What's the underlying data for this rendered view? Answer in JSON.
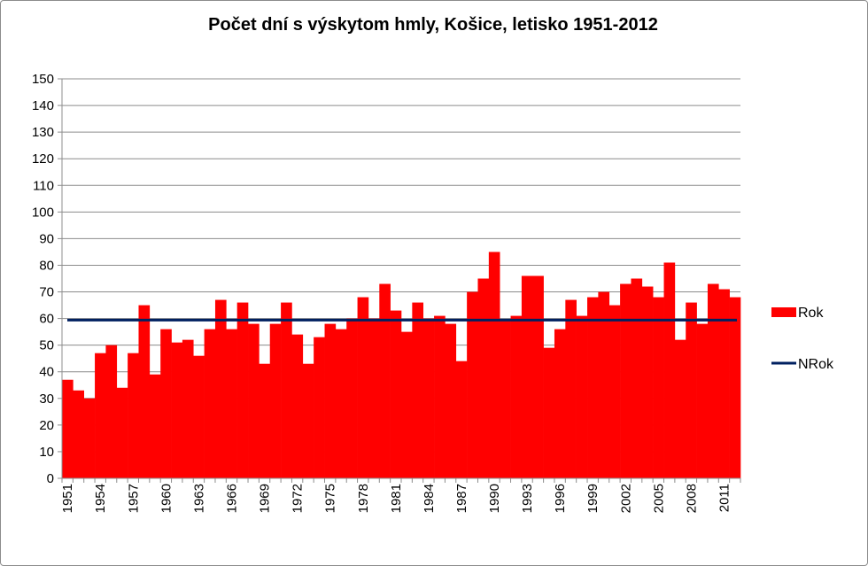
{
  "chart_data": {
    "type": "bar",
    "title": "Počet dní s výskytom hmly, Košice, letisko 1951-2012",
    "xlabel": "",
    "ylabel": "",
    "ylim": [
      0,
      150
    ],
    "y_ticks": [
      "0",
      "10",
      "20",
      "30",
      "40",
      "50",
      "60",
      "70",
      "80",
      "90",
      "100",
      "110",
      "120",
      "130",
      "140",
      "150"
    ],
    "categories": [
      "1951",
      "1952",
      "1953",
      "1954",
      "1955",
      "1956",
      "1957",
      "1958",
      "1959",
      "1960",
      "1961",
      "1962",
      "1963",
      "1964",
      "1965",
      "1966",
      "1967",
      "1968",
      "1969",
      "1970",
      "1971",
      "1972",
      "1973",
      "1974",
      "1975",
      "1976",
      "1977",
      "1978",
      "1979",
      "1980",
      "1981",
      "1982",
      "1983",
      "1984",
      "1985",
      "1986",
      "1987",
      "1988",
      "1989",
      "1990",
      "1991",
      "1992",
      "1993",
      "1994",
      "1995",
      "1996",
      "1997",
      "1998",
      "1999",
      "2000",
      "2001",
      "2002",
      "2003",
      "2004",
      "2005",
      "2006",
      "2007",
      "2008",
      "2009",
      "2010",
      "2011",
      "2012"
    ],
    "x_tick_labels": [
      "1951",
      "1954",
      "1957",
      "1960",
      "1963",
      "1966",
      "1969",
      "1972",
      "1975",
      "1978",
      "1981",
      "1984",
      "1987",
      "1990",
      "1993",
      "1996",
      "1999",
      "2002",
      "2005",
      "2008",
      "2011"
    ],
    "grid": true,
    "legend_position": "right",
    "series": [
      {
        "name": "Rok",
        "type": "bar",
        "color": "#ff0000",
        "values": [
          37,
          33,
          30,
          47,
          50,
          34,
          47,
          65,
          39,
          56,
          51,
          52,
          46,
          56,
          67,
          56,
          66,
          58,
          43,
          58,
          66,
          54,
          43,
          53,
          58,
          56,
          60,
          68,
          60,
          73,
          63,
          55,
          66,
          60,
          61,
          58,
          44,
          70,
          75,
          85,
          59,
          61,
          76,
          76,
          49,
          56,
          67,
          61,
          68,
          70,
          65,
          73,
          75,
          72,
          68,
          81,
          52,
          66,
          58,
          73,
          71,
          68
        ]
      },
      {
        "name": "NRok",
        "type": "line",
        "color": "#002060",
        "values": [
          59.4,
          59.4,
          59.4,
          59.4,
          59.4,
          59.4,
          59.4,
          59.4,
          59.4,
          59.4,
          59.4,
          59.4,
          59.4,
          59.4,
          59.4,
          59.4,
          59.4,
          59.4,
          59.4,
          59.4,
          59.4,
          59.4,
          59.4,
          59.4,
          59.4,
          59.4,
          59.4,
          59.4,
          59.4,
          59.4,
          59.4,
          59.4,
          59.4,
          59.4,
          59.4,
          59.4,
          59.4,
          59.4,
          59.4,
          59.4,
          59.4,
          59.4,
          59.4,
          59.4,
          59.4,
          59.4,
          59.4,
          59.4,
          59.4,
          59.4,
          59.4,
          59.4,
          59.4,
          59.4,
          59.4,
          59.4,
          59.4,
          59.4,
          59.4,
          59.4,
          59.4,
          59.4
        ]
      }
    ]
  }
}
